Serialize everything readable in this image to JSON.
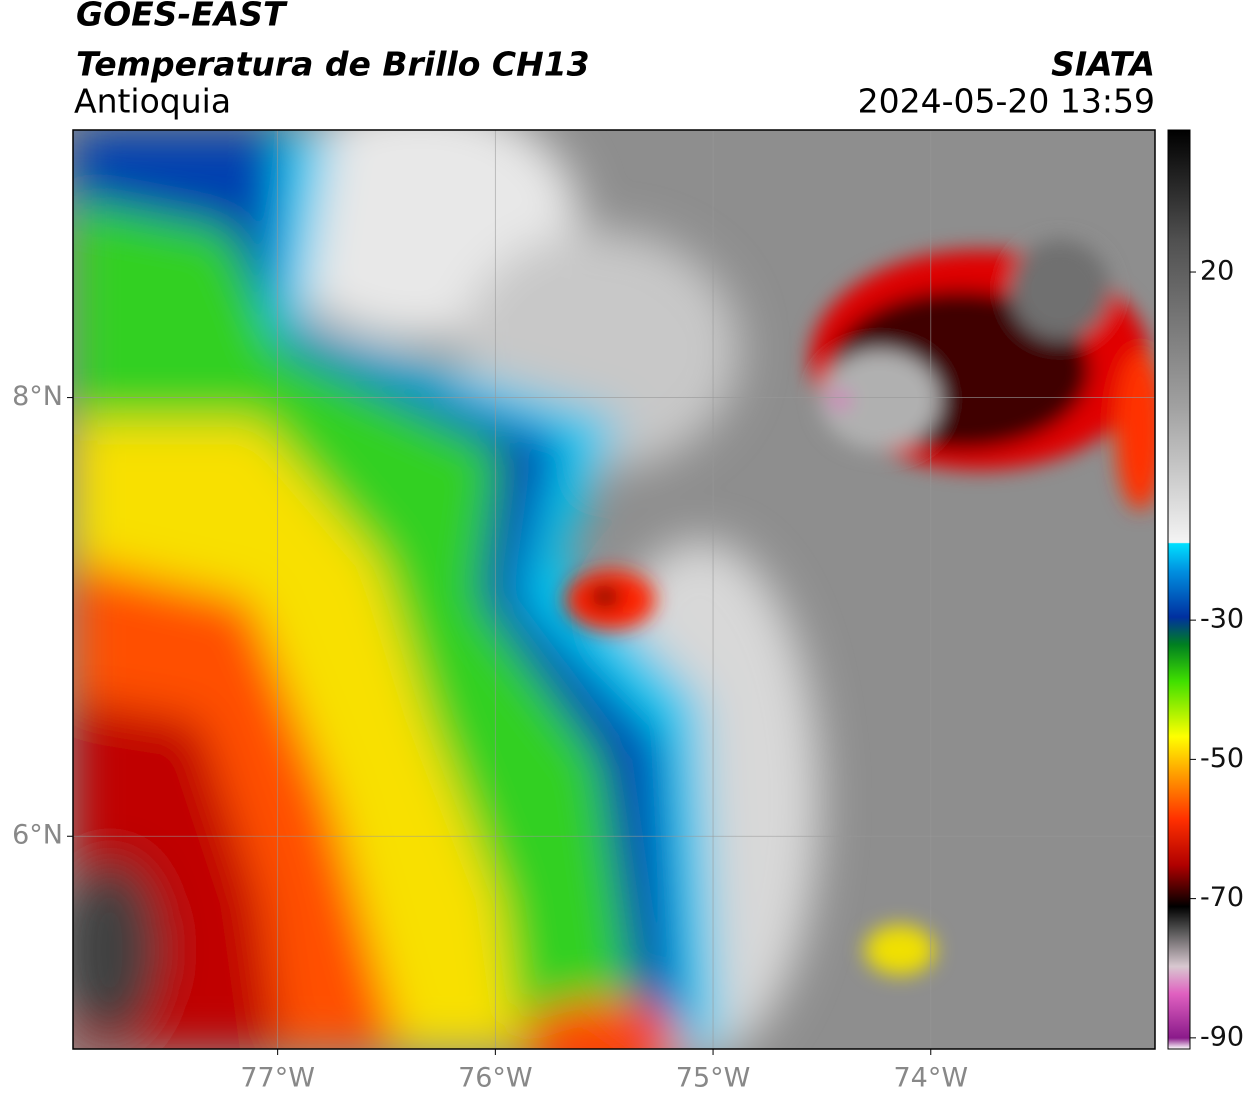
{
  "header": {
    "title": "GOES-EAST",
    "subtitle": "Temperatura de Brillo CH13",
    "region": "Antioquia",
    "source": "SIATA",
    "datetime": "2024-05-20 13:59"
  },
  "map": {
    "xlim": [
      -77.94,
      -72.97
    ],
    "xticks": [
      {
        "value": -77,
        "label": "77°W"
      },
      {
        "value": -76,
        "label": "76°W"
      },
      {
        "value": -75,
        "label": "75°W"
      },
      {
        "value": -74,
        "label": "74°W"
      }
    ],
    "ylim": [
      5.03,
      9.22
    ],
    "yticks": [
      {
        "value": 6,
        "label": "6°N"
      },
      {
        "value": 8,
        "label": "8°N"
      }
    ],
    "grid": true
  },
  "colorbar": {
    "lim": [
      -91.6,
      40.4
    ],
    "ticks": [
      20,
      -30,
      -50,
      -70,
      -90
    ]
  }
}
